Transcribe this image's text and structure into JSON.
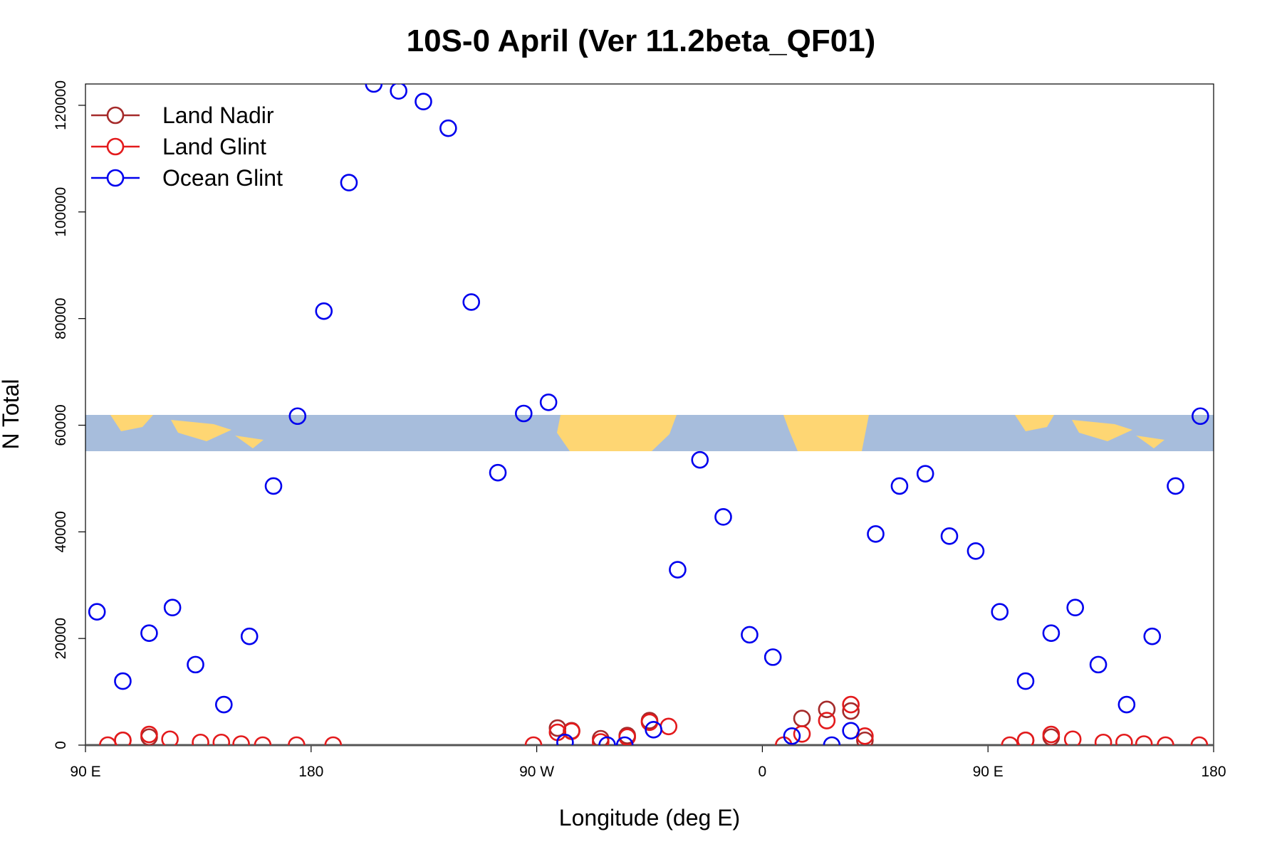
{
  "chart_data": {
    "type": "scatter",
    "title": "10S-0 April (Ver 11.2beta_QF01)",
    "x_label": "Longitude (deg E)",
    "y_label": "N Total",
    "xlim": [
      90,
      540
    ],
    "ylim": [
      0,
      124000
    ],
    "xticks": [
      {
        "value": 90,
        "label": "90 E"
      },
      {
        "value": 180,
        "label": "180"
      },
      {
        "value": 270,
        "label": "90 W"
      },
      {
        "value": 360,
        "label": "0"
      },
      {
        "value": 450,
        "label": "90 E"
      },
      {
        "value": 540,
        "label": "180"
      }
    ],
    "yticks": [
      0,
      20000,
      40000,
      60000,
      80000,
      100000,
      120000
    ],
    "legend": "top-left",
    "series": [
      {
        "name": "Land Nadir",
        "color": "#a52a2a",
        "x": [
          104.9,
          115.4,
          278.3,
          283.9,
          295.5,
          306.1,
          315.0,
          375.8,
          385.7,
          395.3,
          400.9,
          465.0,
          475.2
        ],
        "values": [
          900,
          1500,
          3200,
          2700,
          1200,
          1800,
          4600,
          5000,
          6700,
          6400,
          900,
          900,
          1500
        ]
      },
      {
        "name": "Land Glint",
        "color": "#e31a1c",
        "x": [
          98.9,
          104.9,
          115.4,
          123.7,
          135.9,
          144.2,
          152.1,
          160.7,
          174.2,
          188.8,
          268.7,
          278.3,
          283.9,
          295.5,
          306.1,
          315.0,
          322.6,
          368.5,
          375.8,
          385.7,
          395.3,
          400.9,
          458.7,
          465.0,
          475.2,
          483.8,
          496.0,
          504.3,
          512.2,
          520.8,
          534.3
        ],
        "values": [
          0,
          900,
          2000,
          1100,
          500,
          500,
          200,
          0,
          0,
          0,
          0,
          2400,
          2600,
          600,
          1500,
          4300,
          3500,
          0,
          2100,
          4600,
          7600,
          1700,
          0,
          900,
          2000,
          1100,
          500,
          500,
          200,
          0,
          0
        ]
      },
      {
        "name": "Ocean Glint",
        "color": "#0000ee",
        "x": [
          94.6,
          104.9,
          115.4,
          124.7,
          133.9,
          145.2,
          155.4,
          165.0,
          174.6,
          185.1,
          195.1,
          205.0,
          214.9,
          224.8,
          234.7,
          243.9,
          254.5,
          264.8,
          274.7,
          281.3,
          298.1,
          305.1,
          316.6,
          326.2,
          335.1,
          344.4,
          354.9,
          364.2,
          371.8,
          387.7,
          395.3,
          405.2,
          414.7,
          425.0,
          434.6,
          445.1,
          454.7,
          465.0,
          475.2,
          484.8,
          494.0,
          505.3,
          515.5,
          524.8,
          534.7
        ],
        "values": [
          25000,
          12000,
          21000,
          25800,
          15100,
          7600,
          20400,
          48600,
          61700,
          81400,
          105500,
          124000,
          122700,
          120700,
          115700,
          83100,
          51100,
          62200,
          64300,
          500,
          0,
          0,
          2900,
          32900,
          53500,
          42800,
          20700,
          16500,
          1700,
          0,
          2700,
          39600,
          48600,
          50900,
          39200,
          36400,
          25000,
          12000,
          21000,
          25800,
          15100,
          7600,
          20400,
          48600,
          61700
        ]
      }
    ]
  }
}
